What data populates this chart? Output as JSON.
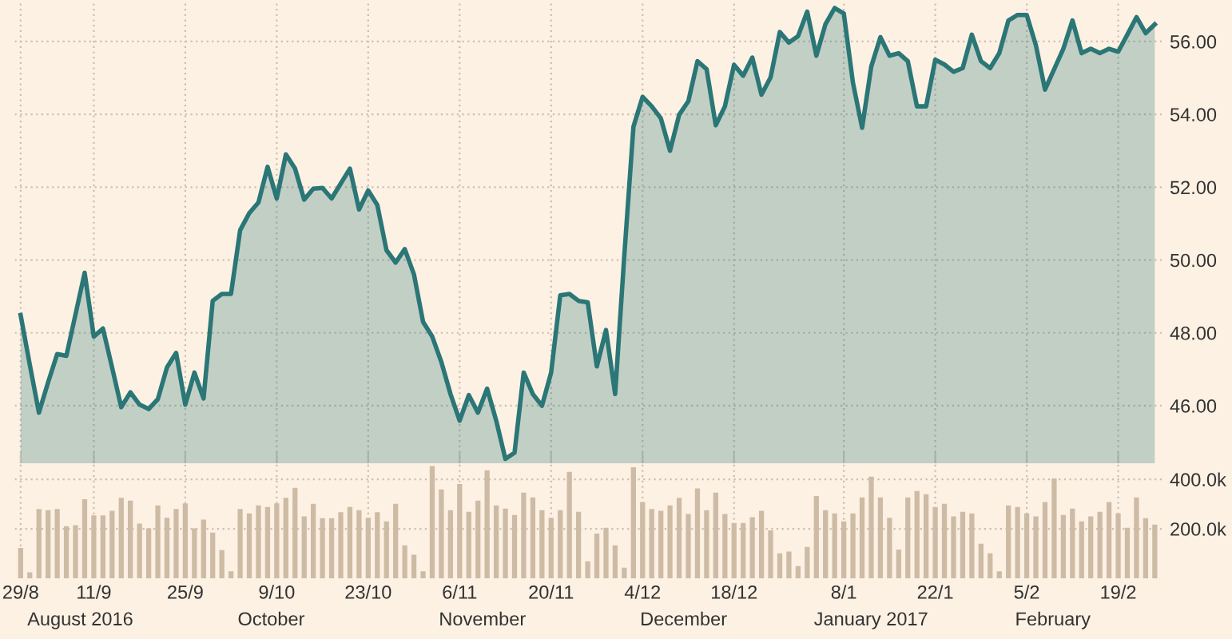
{
  "chart_data": [
    {
      "type": "area",
      "categories": [
        null,
        null,
        null,
        null,
        null,
        null,
        null,
        null,
        null,
        null,
        null,
        null,
        null,
        null,
        null,
        null,
        null,
        null,
        null,
        null,
        null,
        null,
        null,
        null,
        null,
        null,
        null,
        null,
        null,
        null,
        null,
        null,
        null,
        null,
        null,
        null,
        null,
        null,
        null,
        null,
        null,
        null,
        null,
        null,
        null,
        null,
        null,
        null,
        null,
        null,
        null,
        null,
        null,
        null,
        null,
        null,
        null,
        null,
        null,
        null,
        null,
        null,
        null,
        null,
        null,
        null,
        null,
        null,
        null,
        null,
        null,
        null,
        null,
        null,
        null,
        null,
        null,
        null,
        null,
        null,
        null,
        null,
        null,
        null,
        null,
        null,
        null,
        null,
        null,
        null,
        null,
        null,
        null,
        null,
        null,
        null,
        null,
        null,
        null,
        null,
        null,
        null,
        null,
        null,
        null,
        null,
        null,
        null,
        null,
        null,
        null,
        null,
        null,
        null,
        null,
        null,
        null,
        null,
        null,
        null,
        null,
        null,
        null,
        null,
        null
      ],
      "values": [
        48.49,
        47.13,
        45.81,
        46.64,
        47.42,
        47.37,
        48.51,
        49.65,
        47.9,
        48.12,
        47.05,
        45.96,
        46.37,
        46.03,
        45.91,
        46.18,
        47.05,
        47.45,
        46.03,
        46.91,
        46.2,
        48.88,
        49.07,
        49.07,
        50.82,
        51.29,
        51.58,
        52.56,
        51.69,
        52.9,
        52.51,
        51.66,
        51.96,
        51.98,
        51.69,
        52.1,
        52.51,
        51.39,
        51.91,
        51.51,
        50.27,
        49.93,
        50.3,
        49.61,
        48.3,
        47.9,
        47.2,
        46.32,
        45.59,
        46.29,
        45.81,
        46.47,
        45.59,
        44.54,
        44.71,
        46.91,
        46.32,
        46.0,
        46.91,
        49.03,
        49.07,
        48.88,
        48.84,
        47.08,
        48.08,
        46.32,
        50.12,
        53.66,
        54.48,
        54.22,
        53.89,
        53.0,
        53.99,
        54.36,
        55.46,
        55.24,
        53.7,
        54.22,
        55.36,
        55.06,
        55.56,
        54.54,
        55.02,
        56.26,
        55.97,
        56.15,
        56.82,
        55.61,
        56.48,
        56.92,
        56.77,
        54.87,
        53.63,
        55.31,
        56.12,
        55.61,
        55.68,
        55.46,
        54.22,
        54.22,
        55.5,
        55.37,
        55.17,
        55.27,
        56.19,
        55.46,
        55.27,
        55.68,
        56.58,
        56.73,
        56.73,
        55.9,
        54.68,
        55.24,
        55.8,
        56.58,
        55.68,
        55.8,
        55.68,
        55.8,
        55.72,
        56.19,
        56.67,
        56.23,
        56.47
      ],
      "color": "#2b7676",
      "ylim": [
        44.42,
        57.14
      ],
      "yticks": [
        {
          "value": 46,
          "label": "46.00"
        },
        {
          "value": 48,
          "label": "48.00"
        },
        {
          "value": 50,
          "label": "50.00"
        },
        {
          "value": 52,
          "label": "52.00"
        },
        {
          "value": 54,
          "label": "54.00"
        },
        {
          "value": 56,
          "label": "56.00"
        }
      ],
      "grid": true,
      "tick_labels": "y"
    },
    {
      "type": "bar",
      "categories": [
        "29/8",
        null,
        null,
        null,
        null,
        null,
        null,
        null,
        "11/9",
        null,
        null,
        null,
        null,
        null,
        null,
        null,
        null,
        null,
        "25/9",
        null,
        null,
        null,
        null,
        null,
        null,
        null,
        null,
        null,
        "9/10",
        null,
        null,
        null,
        null,
        null,
        null,
        null,
        null,
        null,
        "23/10",
        null,
        null,
        null,
        null,
        null,
        null,
        null,
        null,
        null,
        "6/11",
        null,
        null,
        null,
        null,
        null,
        null,
        null,
        null,
        null,
        "20/11",
        null,
        null,
        null,
        null,
        null,
        null,
        null,
        null,
        null,
        "4/12",
        null,
        null,
        null,
        null,
        null,
        null,
        null,
        null,
        null,
        "18/12",
        null,
        null,
        null,
        null,
        null,
        null,
        null,
        null,
        null,
        null,
        null,
        "8/1",
        null,
        null,
        null,
        null,
        null,
        null,
        null,
        null,
        null,
        "22/1",
        null,
        null,
        null,
        null,
        null,
        null,
        null,
        null,
        null,
        "5/2",
        null,
        null,
        null,
        null,
        null,
        null,
        null,
        null,
        null,
        "19/2",
        null,
        null,
        null,
        null
      ],
      "values": [
        123000,
        24000,
        280000,
        275000,
        280000,
        211000,
        215000,
        320000,
        254000,
        254000,
        273000,
        325000,
        314000,
        221000,
        202000,
        295000,
        245000,
        280000,
        303000,
        202000,
        237000,
        185000,
        114000,
        28000,
        280000,
        262000,
        295000,
        288000,
        303000,
        325000,
        366000,
        250000,
        301000,
        243000,
        243000,
        267000,
        288000,
        275000,
        245000,
        267000,
        230000,
        301000,
        133000,
        95000,
        28000,
        454000,
        359000,
        275000,
        381000,
        269000,
        314000,
        437000,
        295000,
        282000,
        256000,
        346000,
        327000,
        275000,
        245000,
        275000,
        430000,
        269000,
        69000,
        181000,
        204000,
        133000,
        43000,
        449000,
        308000,
        280000,
        273000,
        295000,
        325000,
        260000,
        363000,
        275000,
        346000,
        260000,
        224000,
        224000,
        247000,
        273000,
        194000,
        101000,
        108000,
        49000,
        127000,
        333000,
        275000,
        262000,
        230000,
        262000,
        327000,
        411000,
        327000,
        245000,
        116000,
        327000,
        353000,
        340000,
        288000,
        301000,
        250000,
        269000,
        262000,
        140000,
        101000,
        28000,
        295000,
        288000,
        262000,
        250000,
        308000,
        404000,
        256000,
        282000,
        230000,
        250000,
        269000,
        308000,
        262000,
        204000,
        327000,
        243000,
        217000
      ],
      "color": "#cdbba6",
      "ylim": [
        0,
        465000
      ],
      "yticks": [
        {
          "value": 200000,
          "label": "200.0k"
        },
        {
          "value": 400000,
          "label": "400.0k"
        }
      ],
      "grid": true,
      "annotations": [
        "August 2016",
        "October",
        "November",
        "December",
        "January 2017",
        "February"
      ]
    }
  ]
}
